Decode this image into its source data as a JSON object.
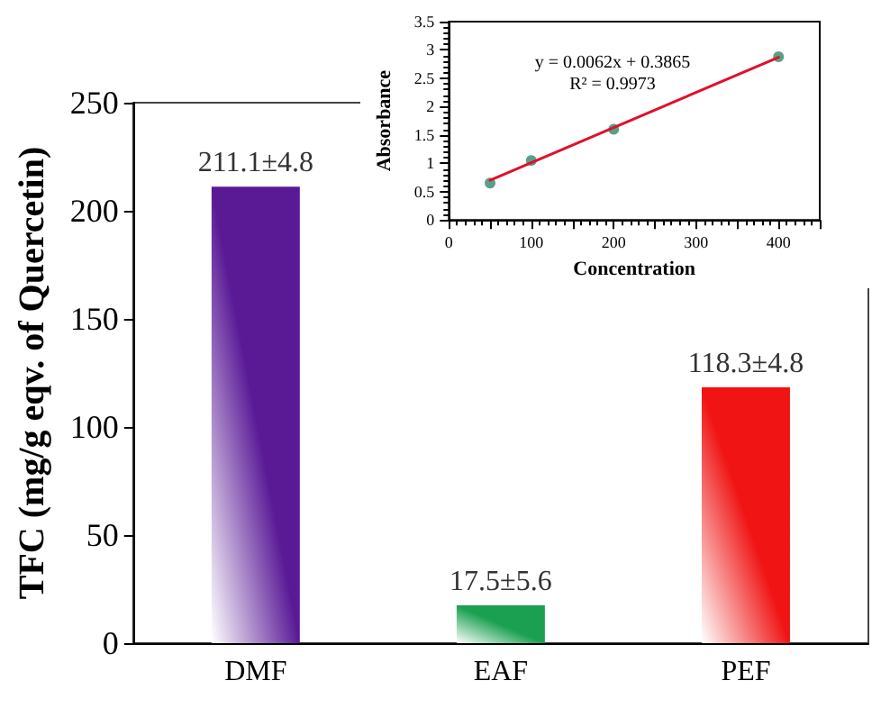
{
  "chart_data": [
    {
      "type": "bar",
      "ylabel": "TFC (mg/g eqv. of Quercetin)",
      "categories": [
        "DMF",
        "EAF",
        "PEF"
      ],
      "values": [
        211.1,
        17.5,
        118.3
      ],
      "colors": [
        "#5a1a96",
        "#1aa050",
        "#f01414"
      ],
      "value_labels": [
        "211.1±4.8",
        "17.5±5.6",
        "118.3±4.8"
      ],
      "ylim": [
        0,
        250
      ],
      "yticks": [
        0,
        50,
        100,
        150,
        200,
        250
      ]
    },
    {
      "type": "scatter",
      "xlabel": "Concentration",
      "ylabel": "Absorbance",
      "xlim": [
        0,
        450
      ],
      "xticks": [
        0,
        100,
        200,
        300,
        400
      ],
      "ylim": [
        0,
        3.5
      ],
      "yticks": [
        0,
        0.5,
        1,
        1.5,
        2,
        2.5,
        3,
        3.5
      ],
      "series": [
        {
          "color": "#2e8a6a",
          "marker": "circle",
          "x": [
            50,
            100,
            200,
            400
          ],
          "values": [
            0.65,
            1.05,
            1.6,
            2.88
          ]
        },
        {
          "type": "line",
          "color": "#e0102a",
          "marker": "none",
          "line_style": "solid",
          "x": [
            50,
            400
          ],
          "values": [
            0.7,
            2.87
          ]
        }
      ],
      "annotations": [
        "y = 0.0062x + 0.3865",
        "R² = 0.9973"
      ]
    }
  ]
}
